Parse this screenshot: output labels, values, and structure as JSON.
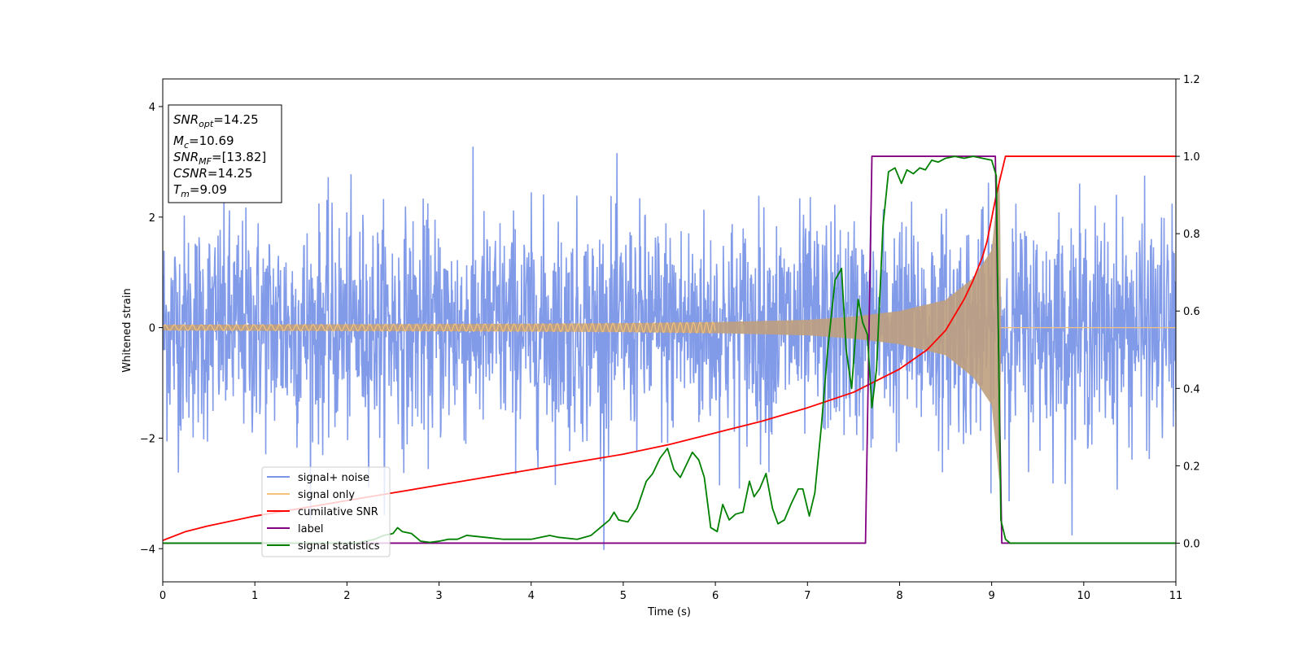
{
  "chart_data": {
    "type": "line",
    "xlabel": "Time (s)",
    "ylabel": "Whitened strain",
    "xlim": [
      0,
      11
    ],
    "ylim": [
      -4.6,
      4.5
    ],
    "y2lim": [
      -0.1,
      1.2
    ],
    "xticks": [
      "0",
      "1",
      "2",
      "3",
      "4",
      "5",
      "6",
      "7",
      "8",
      "9",
      "10",
      "11"
    ],
    "yticks": [
      "−4",
      "−2",
      "0",
      "2",
      "4"
    ],
    "y2ticks": [
      "0.0",
      "0.2",
      "0.4",
      "0.6",
      "0.8",
      "1.0",
      "1.2"
    ],
    "grid": false,
    "legend_position": "lower-left",
    "info_box": {
      "position": "top-left",
      "lines": [
        {
          "var": "SNR",
          "sub": "opt",
          "value": "=14.25"
        },
        {
          "var": "M",
          "sub": "c",
          "value": "=10.69"
        },
        {
          "var": "SNR",
          "sub": "MF",
          "value": "=[13.82]"
        },
        {
          "var": "CSNR",
          "sub": "",
          "value": "=14.25"
        },
        {
          "var": "T",
          "sub": "m",
          "value": "=9.09"
        }
      ]
    },
    "series": [
      {
        "name": "signal+ noise",
        "axis": "left",
        "color": "#7b96e8",
        "noise_std": 1.0,
        "x_range": [
          0,
          11
        ],
        "y_range_approx": [
          -4.15,
          4.1
        ]
      },
      {
        "name": "signal only",
        "axis": "left",
        "color": "#f4c27a",
        "fill_color": "#bfa07e",
        "chirp_envelope": {
          "x": [
            0,
            1,
            2,
            3,
            4,
            5,
            6,
            7,
            7.5,
            8,
            8.5,
            8.8,
            9,
            9.09,
            9.1,
            11
          ],
          "amp": [
            0.05,
            0.055,
            0.06,
            0.065,
            0.07,
            0.08,
            0.1,
            0.14,
            0.2,
            0.3,
            0.5,
            0.9,
            1.4,
            2.9,
            0.0,
            0.0
          ]
        }
      },
      {
        "name": "cumilative SNR",
        "axis": "right",
        "color": "#ff0000",
        "x": [
          0,
          0.25,
          0.5,
          1,
          1.5,
          2,
          2.5,
          3,
          3.5,
          4,
          4.5,
          5,
          5.5,
          6,
          6.5,
          7,
          7.5,
          8,
          8.3,
          8.5,
          8.7,
          8.8,
          8.9,
          8.95,
          9.0,
          9.05,
          9.09,
          9.15,
          11
        ],
        "values": [
          0.007,
          0.03,
          0.045,
          0.07,
          0.09,
          0.11,
          0.13,
          0.15,
          0.17,
          0.19,
          0.21,
          0.23,
          0.255,
          0.285,
          0.315,
          0.35,
          0.39,
          0.45,
          0.5,
          0.55,
          0.63,
          0.68,
          0.74,
          0.78,
          0.84,
          0.9,
          0.94,
          1.0,
          1.0
        ]
      },
      {
        "name": "label",
        "axis": "right",
        "color": "#800080",
        "x": [
          0,
          7.63,
          7.7,
          9.04,
          9.11,
          11
        ],
        "values": [
          0.0,
          0.0,
          1.0,
          1.0,
          0.0,
          0.0
        ]
      },
      {
        "name": "signal statistics",
        "axis": "right",
        "color": "#008000",
        "x": [
          0,
          2.1,
          2.3,
          2.4,
          2.5,
          2.55,
          2.6,
          2.7,
          2.8,
          2.9,
          3.0,
          3.1,
          3.2,
          3.3,
          3.5,
          3.7,
          3.9,
          4.0,
          4.1,
          4.2,
          4.3,
          4.5,
          4.65,
          4.75,
          4.85,
          4.9,
          4.95,
          5.05,
          5.15,
          5.25,
          5.32,
          5.4,
          5.48,
          5.55,
          5.62,
          5.68,
          5.75,
          5.82,
          5.88,
          5.95,
          6.02,
          6.08,
          6.15,
          6.22,
          6.3,
          6.37,
          6.42,
          6.48,
          6.55,
          6.62,
          6.68,
          6.75,
          6.82,
          6.9,
          6.95,
          7.02,
          7.08,
          7.15,
          7.22,
          7.3,
          7.37,
          7.42,
          7.48,
          7.55,
          7.6,
          7.65,
          7.7,
          7.75,
          7.82,
          7.88,
          7.95,
          8.02,
          8.08,
          8.15,
          8.22,
          8.28,
          8.35,
          8.42,
          8.5,
          8.6,
          8.7,
          8.8,
          8.9,
          9.0,
          9.05,
          9.1,
          9.15,
          9.2,
          9.3,
          11
        ],
        "values": [
          0.0,
          0.0,
          0.01,
          0.02,
          0.025,
          0.04,
          0.03,
          0.025,
          0.005,
          0.002,
          0.005,
          0.01,
          0.01,
          0.02,
          0.015,
          0.01,
          0.01,
          0.01,
          0.015,
          0.02,
          0.015,
          0.01,
          0.02,
          0.04,
          0.06,
          0.08,
          0.06,
          0.055,
          0.09,
          0.16,
          0.18,
          0.22,
          0.245,
          0.19,
          0.17,
          0.2,
          0.235,
          0.215,
          0.17,
          0.04,
          0.03,
          0.1,
          0.06,
          0.075,
          0.08,
          0.16,
          0.12,
          0.14,
          0.18,
          0.09,
          0.05,
          0.06,
          0.1,
          0.14,
          0.14,
          0.07,
          0.13,
          0.3,
          0.5,
          0.68,
          0.71,
          0.5,
          0.4,
          0.63,
          0.57,
          0.54,
          0.35,
          0.45,
          0.82,
          0.96,
          0.97,
          0.93,
          0.965,
          0.955,
          0.97,
          0.965,
          0.99,
          0.985,
          0.995,
          1.0,
          0.995,
          1.0,
          0.995,
          0.99,
          0.95,
          0.06,
          0.01,
          0.0,
          0.0,
          0.0
        ]
      }
    ]
  }
}
